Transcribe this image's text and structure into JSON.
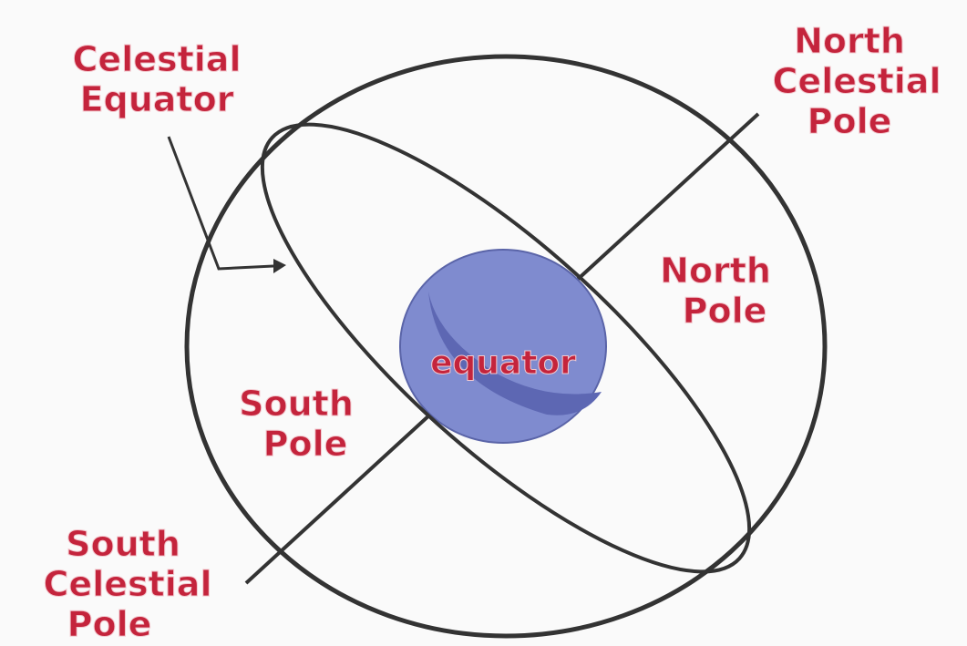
{
  "labels": {
    "celestial_equator": [
      "Celestial",
      "Equator"
    ],
    "north_celestial_pole": [
      "North",
      "Celestial",
      "Pole"
    ],
    "north_pole": [
      "North",
      "Pole"
    ],
    "equator": "equator",
    "south_pole": [
      "South",
      "Pole"
    ],
    "south_celestial_pole": [
      "South",
      "Celestial",
      "Pole"
    ]
  }
}
